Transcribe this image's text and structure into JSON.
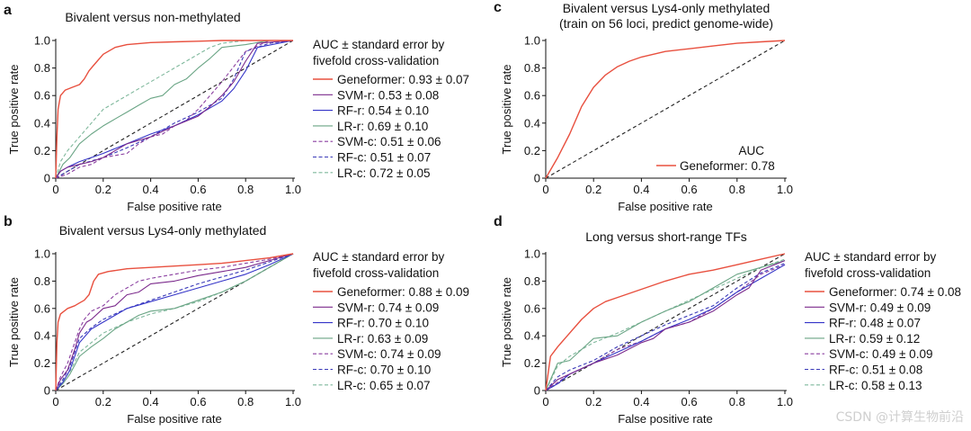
{
  "watermark": "CSDN @计算生物前沿",
  "colors": {
    "Geneformer": "#e8503f",
    "SVM-r": "#7b2a8c",
    "RF-r": "#3535c8",
    "LR-r": "#6aa585",
    "SVM-c": "#8a3fa0",
    "RF-c": "#3a3ab8",
    "LR-c": "#7fb89c",
    "diagonal": "#222222"
  },
  "chart_data": [
    {
      "panel": "a",
      "type": "line",
      "title": "Bivalent versus non-methylated",
      "subtitle": "",
      "xlabel": "False positive rate",
      "ylabel": "True positive rate",
      "xlim": [
        0,
        1
      ],
      "ylim": [
        0,
        1
      ],
      "xticks": [
        "0",
        "0.2",
        "0.4",
        "0.6",
        "0.8",
        "1.0"
      ],
      "yticks": [
        "0",
        "0.2",
        "0.4",
        "0.6",
        "0.8",
        "1.0"
      ],
      "legend_title": [
        "AUC ± standard error by",
        "fivefold cross-validation"
      ],
      "series": [
        {
          "name": "Geneformer",
          "label": "Geneformer: 0.93 ± 0.07",
          "dash": "solid",
          "x": [
            0,
            0.005,
            0.01,
            0.02,
            0.04,
            0.07,
            0.1,
            0.12,
            0.14,
            0.16,
            0.2,
            0.25,
            0.3,
            0.4,
            0.5,
            0.6,
            0.7,
            0.8,
            1.0
          ],
          "y": [
            0,
            0.3,
            0.5,
            0.6,
            0.64,
            0.66,
            0.68,
            0.72,
            0.78,
            0.82,
            0.9,
            0.95,
            0.97,
            0.985,
            0.99,
            0.995,
            1.0,
            1.0,
            1.0
          ]
        },
        {
          "name": "SVM-r",
          "label": "SVM-r: 0.53 ± 0.08",
          "dash": "solid",
          "x": [
            0,
            0.02,
            0.05,
            0.1,
            0.15,
            0.2,
            0.3,
            0.4,
            0.5,
            0.6,
            0.65,
            0.7,
            0.75,
            0.8,
            0.85,
            1.0
          ],
          "y": [
            0,
            0.05,
            0.08,
            0.1,
            0.12,
            0.15,
            0.25,
            0.3,
            0.38,
            0.45,
            0.52,
            0.6,
            0.7,
            0.85,
            0.98,
            1.0
          ]
        },
        {
          "name": "RF-r",
          "label": "RF-r: 0.54 ± 0.10",
          "dash": "solid",
          "x": [
            0,
            0.02,
            0.05,
            0.1,
            0.15,
            0.2,
            0.3,
            0.4,
            0.5,
            0.6,
            0.7,
            0.75,
            0.8,
            0.85,
            1.0
          ],
          "y": [
            0,
            0.05,
            0.08,
            0.12,
            0.15,
            0.18,
            0.25,
            0.32,
            0.38,
            0.46,
            0.56,
            0.65,
            0.78,
            0.95,
            1.0
          ]
        },
        {
          "name": "LR-r",
          "label": "LR-r: 0.69 ± 0.10",
          "dash": "solid",
          "x": [
            0,
            0.03,
            0.06,
            0.1,
            0.15,
            0.2,
            0.25,
            0.3,
            0.35,
            0.4,
            0.45,
            0.5,
            0.55,
            0.6,
            0.65,
            0.7,
            0.8,
            0.9,
            1.0
          ],
          "y": [
            0,
            0.1,
            0.15,
            0.25,
            0.32,
            0.38,
            0.43,
            0.48,
            0.53,
            0.58,
            0.6,
            0.68,
            0.72,
            0.8,
            0.87,
            0.95,
            0.97,
            1.0,
            1.0
          ]
        },
        {
          "name": "SVM-c",
          "label": "SVM-c: 0.51 ± 0.06",
          "dash": "dashed",
          "x": [
            0,
            0.05,
            0.1,
            0.15,
            0.2,
            0.3,
            0.35,
            0.4,
            0.45,
            0.5,
            0.55,
            0.6,
            0.65,
            0.7,
            0.8,
            0.9,
            1.0
          ],
          "y": [
            0,
            0.03,
            0.08,
            0.1,
            0.15,
            0.18,
            0.25,
            0.3,
            0.32,
            0.38,
            0.42,
            0.5,
            0.6,
            0.7,
            0.92,
            1.0,
            1.0
          ]
        },
        {
          "name": "RF-c",
          "label": "RF-c: 0.51 ± 0.07",
          "dash": "dashed",
          "x": [
            0,
            0.05,
            0.1,
            0.2,
            0.3,
            0.4,
            0.5,
            0.6,
            0.7,
            0.75,
            0.8,
            0.9,
            1.0
          ],
          "y": [
            0,
            0.05,
            0.1,
            0.15,
            0.22,
            0.3,
            0.4,
            0.48,
            0.58,
            0.72,
            0.92,
            0.98,
            1.0
          ]
        },
        {
          "name": "LR-c",
          "label": "LR-c: 0.72 ± 0.05",
          "dash": "dashed",
          "x": [
            0,
            0.02,
            0.05,
            0.1,
            0.15,
            0.2,
            0.25,
            0.3,
            0.35,
            0.4,
            0.45,
            0.5,
            0.55,
            0.6,
            0.65,
            0.7,
            0.8,
            1.0
          ],
          "y": [
            0,
            0.12,
            0.2,
            0.3,
            0.4,
            0.5,
            0.55,
            0.6,
            0.65,
            0.7,
            0.75,
            0.8,
            0.85,
            0.9,
            0.95,
            0.98,
            1.0,
            1.0
          ]
        }
      ]
    },
    {
      "panel": "b",
      "type": "line",
      "title": "Bivalent versus Lys4-only methylated",
      "subtitle": "",
      "xlabel": "False positive rate",
      "ylabel": "True positive rate",
      "xlim": [
        0,
        1
      ],
      "ylim": [
        0,
        1
      ],
      "xticks": [
        "0",
        "0.2",
        "0.4",
        "0.6",
        "0.8",
        "1.0"
      ],
      "yticks": [
        "0",
        "0.2",
        "0.4",
        "0.6",
        "0.8",
        "1.0"
      ],
      "legend_title": [
        "AUC ± standard error by",
        "fivefold cross-validation"
      ],
      "series": [
        {
          "name": "Geneformer",
          "label": "Geneformer: 0.88 ± 0.09",
          "dash": "solid",
          "x": [
            0,
            0.005,
            0.01,
            0.02,
            0.05,
            0.08,
            0.1,
            0.12,
            0.14,
            0.16,
            0.18,
            0.22,
            0.3,
            0.4,
            0.5,
            0.6,
            0.7,
            0.8,
            0.9,
            1.0
          ],
          "y": [
            0,
            0.35,
            0.5,
            0.56,
            0.6,
            0.62,
            0.64,
            0.66,
            0.7,
            0.8,
            0.85,
            0.87,
            0.89,
            0.9,
            0.91,
            0.92,
            0.93,
            0.95,
            0.97,
            1.0
          ]
        },
        {
          "name": "SVM-r",
          "label": "SVM-r: 0.74 ± 0.09",
          "dash": "solid",
          "x": [
            0,
            0.02,
            0.05,
            0.08,
            0.1,
            0.13,
            0.15,
            0.2,
            0.25,
            0.3,
            0.35,
            0.4,
            0.5,
            0.6,
            0.7,
            0.8,
            0.9,
            1.0
          ],
          "y": [
            0,
            0.08,
            0.15,
            0.3,
            0.42,
            0.5,
            0.52,
            0.6,
            0.62,
            0.7,
            0.72,
            0.78,
            0.8,
            0.84,
            0.87,
            0.9,
            0.95,
            1.0
          ]
        },
        {
          "name": "RF-r",
          "label": "RF-r: 0.70 ± 0.10",
          "dash": "solid",
          "x": [
            0,
            0.03,
            0.06,
            0.1,
            0.15,
            0.2,
            0.25,
            0.3,
            0.4,
            0.5,
            0.6,
            0.7,
            0.8,
            0.9,
            1.0
          ],
          "y": [
            0,
            0.06,
            0.15,
            0.35,
            0.45,
            0.5,
            0.55,
            0.6,
            0.65,
            0.7,
            0.75,
            0.8,
            0.85,
            0.92,
            1.0
          ]
        },
        {
          "name": "LR-r",
          "label": "LR-r: 0.63 ± 0.09",
          "dash": "solid",
          "x": [
            0,
            0.03,
            0.06,
            0.1,
            0.15,
            0.2,
            0.25,
            0.3,
            0.35,
            0.4,
            0.5,
            0.6,
            0.7,
            0.8,
            0.9,
            1.0
          ],
          "y": [
            0,
            0.05,
            0.12,
            0.25,
            0.32,
            0.38,
            0.45,
            0.5,
            0.55,
            0.58,
            0.6,
            0.66,
            0.72,
            0.8,
            0.9,
            1.0
          ]
        },
        {
          "name": "SVM-c",
          "label": "SVM-c: 0.74 ± 0.09",
          "dash": "dashed",
          "x": [
            0,
            0.02,
            0.05,
            0.08,
            0.1,
            0.12,
            0.15,
            0.2,
            0.25,
            0.3,
            0.35,
            0.4,
            0.5,
            0.6,
            0.7,
            0.8,
            0.9,
            1.0
          ],
          "y": [
            0,
            0.1,
            0.2,
            0.35,
            0.45,
            0.52,
            0.58,
            0.62,
            0.7,
            0.75,
            0.8,
            0.82,
            0.85,
            0.88,
            0.9,
            0.93,
            0.96,
            1.0
          ]
        },
        {
          "name": "RF-c",
          "label": "RF-c: 0.70 ± 0.10",
          "dash": "dashed",
          "x": [
            0,
            0.03,
            0.06,
            0.1,
            0.15,
            0.2,
            0.3,
            0.4,
            0.5,
            0.6,
            0.7,
            0.8,
            0.9,
            1.0
          ],
          "y": [
            0,
            0.08,
            0.18,
            0.38,
            0.46,
            0.52,
            0.6,
            0.66,
            0.72,
            0.78,
            0.83,
            0.88,
            0.94,
            1.0
          ]
        },
        {
          "name": "LR-c",
          "label": "LR-c: 0.65 ± 0.07",
          "dash": "dashed",
          "x": [
            0,
            0.03,
            0.06,
            0.1,
            0.15,
            0.2,
            0.3,
            0.4,
            0.5,
            0.6,
            0.7,
            0.8,
            0.9,
            1.0
          ],
          "y": [
            0,
            0.07,
            0.14,
            0.28,
            0.35,
            0.42,
            0.5,
            0.56,
            0.6,
            0.65,
            0.72,
            0.8,
            0.9,
            1.0
          ]
        }
      ]
    },
    {
      "panel": "c",
      "type": "line",
      "title": "Bivalent versus Lys4-only methylated",
      "subtitle": "(train on 56 loci, predict genome-wide)",
      "xlabel": "False positive rate",
      "ylabel": "True positive rate",
      "xlim": [
        0,
        1
      ],
      "ylim": [
        0,
        1
      ],
      "xticks": [
        "0",
        "0.2",
        "0.4",
        "0.6",
        "0.8",
        "1.0"
      ],
      "yticks": [
        "0",
        "0.2",
        "0.4",
        "0.6",
        "0.8",
        "1.0"
      ],
      "legend_title": [
        "AUC"
      ],
      "series": [
        {
          "name": "Geneformer",
          "label": "Geneformer: 0.78",
          "dash": "solid",
          "x": [
            0,
            0.05,
            0.1,
            0.15,
            0.2,
            0.25,
            0.3,
            0.35,
            0.4,
            0.5,
            0.6,
            0.7,
            0.8,
            0.9,
            1.0
          ],
          "y": [
            0,
            0.15,
            0.32,
            0.52,
            0.66,
            0.75,
            0.81,
            0.85,
            0.88,
            0.92,
            0.94,
            0.96,
            0.98,
            0.99,
            1.0
          ]
        }
      ]
    },
    {
      "panel": "d",
      "type": "line",
      "title": "Long versus short-range TFs",
      "subtitle": "",
      "xlabel": "False positive rate",
      "ylabel": "True positive rate",
      "xlim": [
        0,
        1
      ],
      "ylim": [
        0,
        1
      ],
      "xticks": [
        "0",
        "0.2",
        "0.4",
        "0.6",
        "0.8",
        "1.0"
      ],
      "yticks": [
        "0",
        "0.2",
        "0.4",
        "0.6",
        "0.8",
        "1.0"
      ],
      "legend_title": [
        "AUC ± standard error by",
        "fivefold cross-validation"
      ],
      "series": [
        {
          "name": "Geneformer",
          "label": "Geneformer: 0.74 ± 0.08",
          "dash": "solid",
          "x": [
            0,
            0.02,
            0.05,
            0.1,
            0.15,
            0.2,
            0.25,
            0.3,
            0.4,
            0.5,
            0.6,
            0.7,
            0.8,
            0.9,
            1.0
          ],
          "y": [
            0,
            0.25,
            0.32,
            0.42,
            0.52,
            0.6,
            0.65,
            0.68,
            0.74,
            0.8,
            0.85,
            0.88,
            0.92,
            0.96,
            1.0
          ]
        },
        {
          "name": "SVM-r",
          "label": "SVM-r: 0.49 ± 0.09",
          "dash": "solid",
          "x": [
            0,
            0.05,
            0.1,
            0.2,
            0.3,
            0.4,
            0.45,
            0.5,
            0.6,
            0.7,
            0.8,
            0.85,
            0.9,
            1.0
          ],
          "y": [
            0,
            0.08,
            0.12,
            0.2,
            0.26,
            0.35,
            0.38,
            0.45,
            0.5,
            0.58,
            0.7,
            0.75,
            0.88,
            0.95
          ]
        },
        {
          "name": "RF-r",
          "label": "RF-r: 0.48 ± 0.07",
          "dash": "solid",
          "x": [
            0,
            0.05,
            0.1,
            0.2,
            0.3,
            0.4,
            0.5,
            0.6,
            0.7,
            0.8,
            0.9,
            1.0
          ],
          "y": [
            0,
            0.05,
            0.12,
            0.2,
            0.28,
            0.36,
            0.45,
            0.52,
            0.6,
            0.72,
            0.82,
            0.92
          ]
        },
        {
          "name": "LR-r",
          "label": "LR-r: 0.59 ± 0.12",
          "dash": "solid",
          "x": [
            0,
            0.05,
            0.1,
            0.15,
            0.2,
            0.3,
            0.4,
            0.5,
            0.6,
            0.7,
            0.8,
            0.9,
            1.0
          ],
          "y": [
            0,
            0.2,
            0.22,
            0.3,
            0.38,
            0.4,
            0.5,
            0.58,
            0.65,
            0.75,
            0.85,
            0.9,
            0.95
          ]
        },
        {
          "name": "SVM-c",
          "label": "SVM-c: 0.49 ± 0.09",
          "dash": "dashed",
          "x": [
            0,
            0.05,
            0.1,
            0.2,
            0.3,
            0.4,
            0.5,
            0.6,
            0.7,
            0.8,
            0.9,
            1.0
          ],
          "y": [
            0,
            0.06,
            0.12,
            0.2,
            0.3,
            0.36,
            0.45,
            0.5,
            0.6,
            0.72,
            0.85,
            0.92
          ]
        },
        {
          "name": "RF-c",
          "label": "RF-c: 0.51 ± 0.08",
          "dash": "dashed",
          "x": [
            0,
            0.05,
            0.1,
            0.2,
            0.3,
            0.4,
            0.5,
            0.6,
            0.7,
            0.8,
            0.9,
            1.0
          ],
          "y": [
            0,
            0.1,
            0.15,
            0.22,
            0.32,
            0.4,
            0.48,
            0.55,
            0.62,
            0.75,
            0.86,
            0.93
          ]
        },
        {
          "name": "LR-c",
          "label": "LR-c: 0.58 ± 0.13",
          "dash": "dashed",
          "x": [
            0,
            0.05,
            0.1,
            0.2,
            0.3,
            0.4,
            0.5,
            0.6,
            0.7,
            0.8,
            0.9,
            1.0
          ],
          "y": [
            0,
            0.18,
            0.25,
            0.35,
            0.42,
            0.5,
            0.58,
            0.66,
            0.74,
            0.82,
            0.9,
            0.96
          ]
        }
      ]
    }
  ]
}
